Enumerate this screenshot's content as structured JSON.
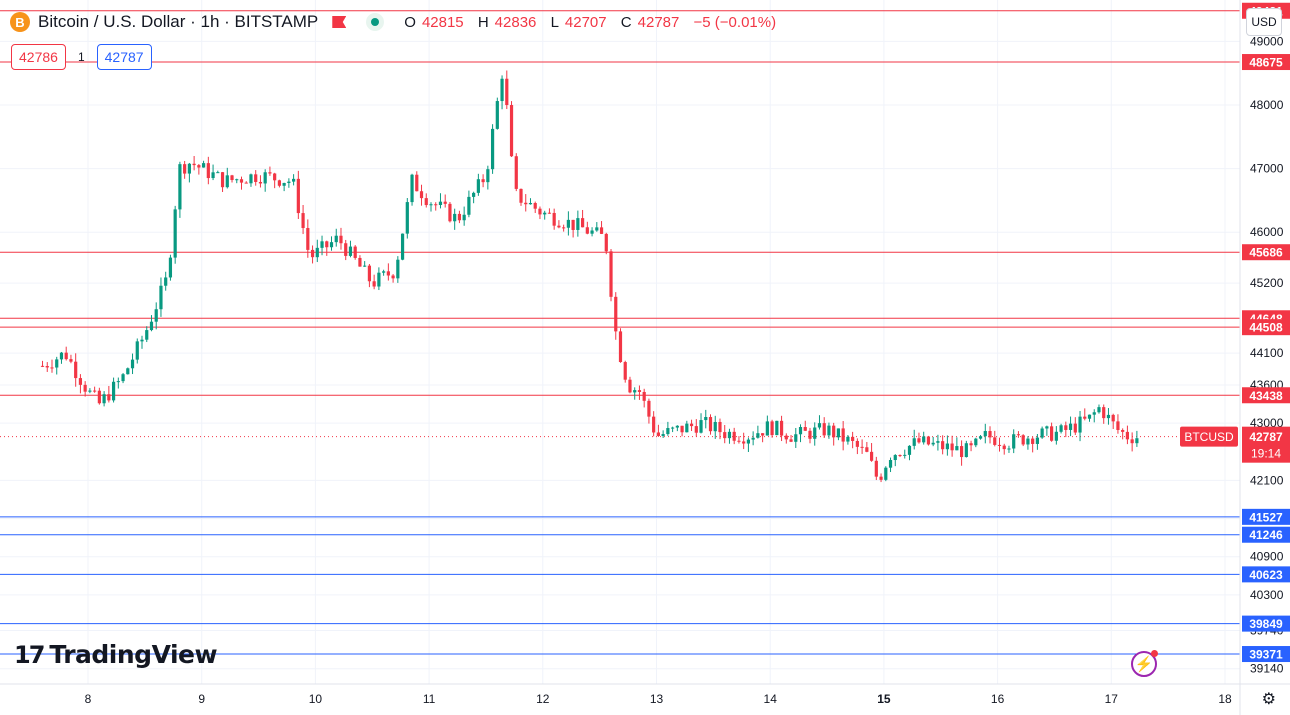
{
  "header": {
    "coin_icon": "B",
    "symbol_title": "Bitcoin / U.S. Dollar · 1h · BITSTAMP",
    "ohlc": {
      "o_label": "O",
      "o": "42815",
      "h_label": "H",
      "h": "42836",
      "l_label": "L",
      "l": "42707",
      "c_label": "C",
      "c": "42787",
      "change": "−5 (−0.01%)"
    },
    "bid": "42786",
    "spread": "1",
    "ask": "42787",
    "currency": "USD"
  },
  "branding": {
    "logo_mark": "17",
    "logo_text": "TradingView"
  },
  "colors": {
    "up": "#089981",
    "down": "#f23645",
    "resistance": "#f23645",
    "support": "#2962ff",
    "grid": "#f0f3fa",
    "axis_text": "#131722"
  },
  "icons": {
    "settings": "gear-icon",
    "alert": "bolt-icon",
    "flag": "flag-icon"
  },
  "chart_data": {
    "type": "candlestick",
    "title": "Bitcoin / U.S. Dollar · 1h · BITSTAMP",
    "x_axis": {
      "labels": [
        "8",
        "9",
        "10",
        "11",
        "12",
        "13",
        "14",
        "15",
        "16",
        "17",
        "18"
      ],
      "bold": [
        "15"
      ]
    },
    "y_axis": {
      "range": [
        38900,
        49650
      ],
      "ticks": [
        39140,
        39740,
        40300,
        40900,
        41500,
        42100,
        43000,
        43600,
        44100,
        45200,
        46000,
        47000,
        48000,
        49000
      ]
    },
    "grid": true,
    "horizontal_levels": [
      {
        "value": 49481,
        "label": "49481",
        "kind": "resistance"
      },
      {
        "value": 48675,
        "label": "48675",
        "kind": "resistance"
      },
      {
        "value": 45686,
        "label": "45686",
        "kind": "resistance"
      },
      {
        "value": 44648,
        "label": "44648",
        "kind": "resistance"
      },
      {
        "value": 44508,
        "label": "44508",
        "kind": "resistance"
      },
      {
        "value": 43438,
        "label": "43438",
        "kind": "resistance"
      },
      {
        "value": 41527,
        "label": "41527",
        "kind": "support"
      },
      {
        "value": 41246,
        "label": "41246",
        "kind": "support"
      },
      {
        "value": 40623,
        "label": "40623",
        "kind": "support"
      },
      {
        "value": 39849,
        "label": "39849",
        "kind": "support"
      },
      {
        "value": 39371,
        "label": "39371",
        "kind": "support"
      }
    ],
    "last_price": {
      "symbol": "BTCUSD",
      "value": 42787,
      "label": "42787",
      "countdown": "19:14"
    },
    "price_path": [
      [
        7.6,
        43900
      ],
      [
        7.8,
        44100
      ],
      [
        8.0,
        43500
      ],
      [
        8.1,
        43300
      ],
      [
        8.3,
        43700
      ],
      [
        8.5,
        44400
      ],
      [
        8.7,
        45300
      ],
      [
        8.8,
        47000
      ],
      [
        8.9,
        47100
      ],
      [
        9.2,
        46800
      ],
      [
        9.5,
        46900
      ],
      [
        9.8,
        46800
      ],
      [
        9.95,
        45600
      ],
      [
        10.2,
        45900
      ],
      [
        10.5,
        45200
      ],
      [
        10.7,
        45400
      ],
      [
        10.85,
        46800
      ],
      [
        11.0,
        46500
      ],
      [
        11.25,
        46200
      ],
      [
        11.5,
        46900
      ],
      [
        11.65,
        48600
      ],
      [
        11.75,
        46600
      ],
      [
        12.0,
        46300
      ],
      [
        12.3,
        46100
      ],
      [
        12.55,
        45900
      ],
      [
        12.65,
        44300
      ],
      [
        12.75,
        43600
      ],
      [
        12.85,
        43500
      ],
      [
        13.0,
        42800
      ],
      [
        13.2,
        42900
      ],
      [
        13.4,
        43000
      ],
      [
        13.6,
        42850
      ],
      [
        13.8,
        42800
      ],
      [
        14.0,
        42950
      ],
      [
        14.2,
        42800
      ],
      [
        14.5,
        42900
      ],
      [
        14.7,
        42700
      ],
      [
        14.85,
        42500
      ],
      [
        14.95,
        42100
      ],
      [
        15.05,
        42500
      ],
      [
        15.3,
        42700
      ],
      [
        15.6,
        42600
      ],
      [
        15.75,
        42550
      ],
      [
        15.9,
        42800
      ],
      [
        16.1,
        42700
      ],
      [
        16.3,
        42800
      ],
      [
        16.55,
        42850
      ],
      [
        16.8,
        43050
      ],
      [
        16.9,
        43250
      ],
      [
        17.05,
        42900
      ],
      [
        17.15,
        42790
      ],
      [
        17.25,
        42787
      ]
    ]
  }
}
